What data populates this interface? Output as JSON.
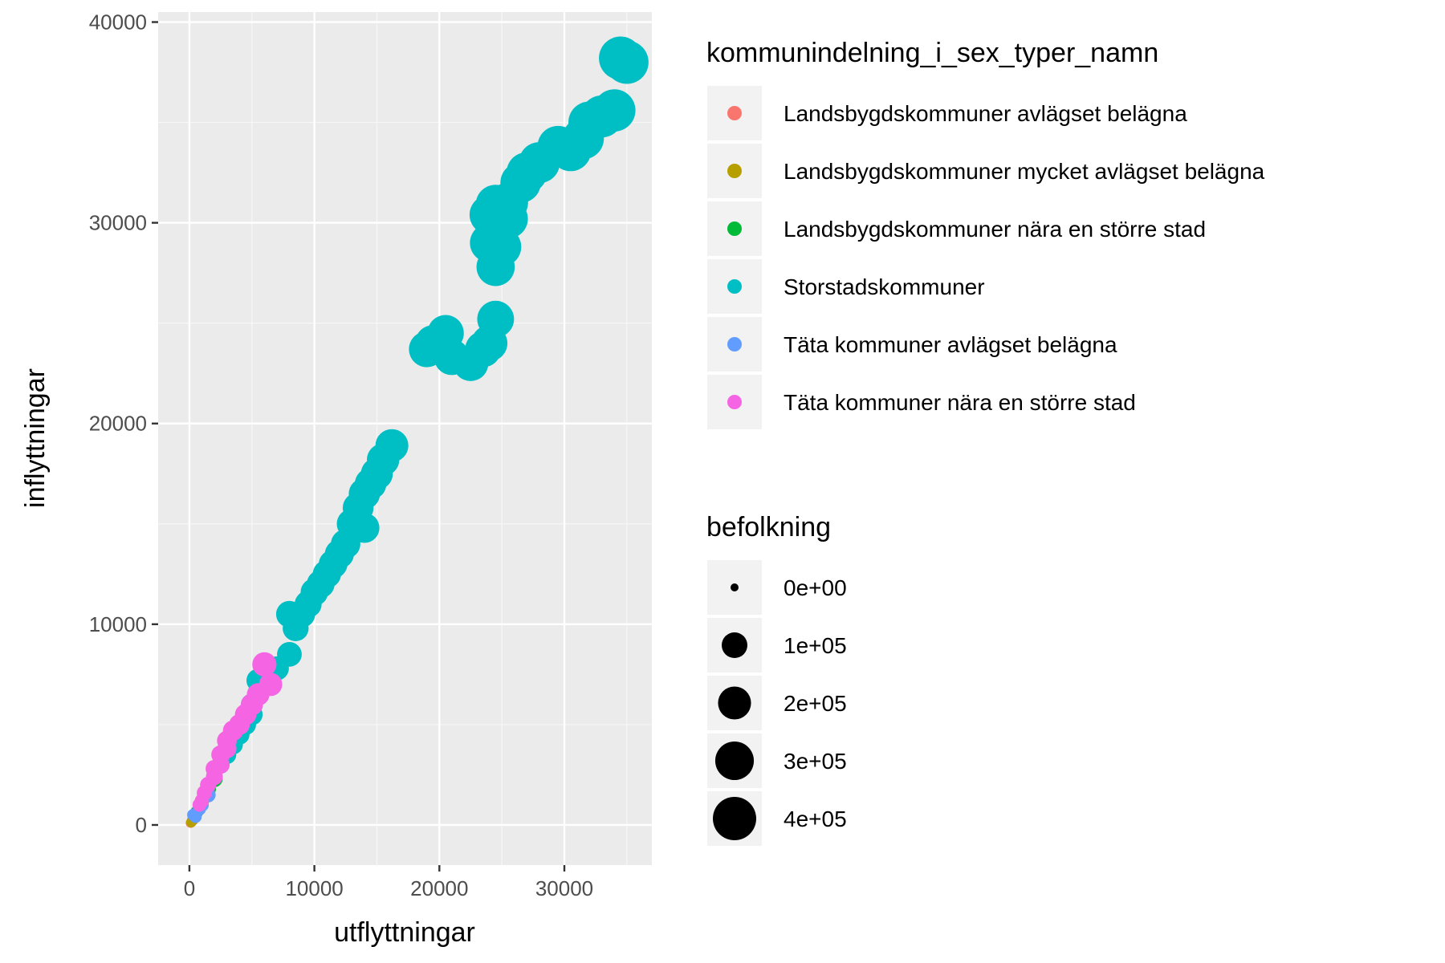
{
  "chart_data": {
    "type": "scatter",
    "xlabel": "utflyttningar",
    "ylabel": "inflyttningar",
    "xlim": [
      -2500,
      37000
    ],
    "ylim": [
      -2000,
      40500
    ],
    "x_ticks": [
      0,
      10000,
      20000,
      30000
    ],
    "x_tick_labels": [
      "0",
      "10000",
      "20000",
      "30000"
    ],
    "y_ticks": [
      0,
      10000,
      20000,
      30000,
      40000
    ],
    "y_tick_labels": [
      "0",
      "10000",
      "20000",
      "30000",
      "40000"
    ],
    "grid": true,
    "legend_position": "right",
    "color_legend": {
      "title": "kommunindelning_i_sex_typer_namn",
      "entries": [
        {
          "label": "Landsbygdskommuner avlägset belägna",
          "color": "#F8766D"
        },
        {
          "label": "Landsbygdskommuner mycket avlägset belägna",
          "color": "#B79F00"
        },
        {
          "label": "Landsbygdskommuner nära en större stad",
          "color": "#00BA38"
        },
        {
          "label": "Storstadskommuner",
          "color": "#00BFC4"
        },
        {
          "label": "Täta kommuner avlägset belägna",
          "color": "#619CFF"
        },
        {
          "label": "Täta kommuner nära en större stad",
          "color": "#F564E3"
        }
      ]
    },
    "size_legend": {
      "title": "befolkning",
      "entries": [
        {
          "label": "0e+00",
          "value": 0
        },
        {
          "label": "1e+05",
          "value": 100000
        },
        {
          "label": "2e+05",
          "value": 200000
        },
        {
          "label": "3e+05",
          "value": 300000
        },
        {
          "label": "4e+05",
          "value": 400000
        }
      ]
    },
    "series": [
      {
        "name": "Landsbygdskommuner avlägset belägna",
        "points": [
          [
            100,
            100
          ],
          [
            200,
            180
          ],
          [
            300,
            280
          ],
          [
            400,
            350
          ]
        ]
      },
      {
        "name": "Landsbygdskommuner mycket avlägset belägna",
        "points": [
          [
            150,
            130
          ],
          [
            250,
            220
          ]
        ]
      },
      {
        "name": "Landsbygdskommuner nära en större stad",
        "points": [
          [
            600,
            650
          ],
          [
            900,
            1000
          ],
          [
            1200,
            1400
          ],
          [
            1500,
            1800
          ],
          [
            2000,
            2300
          ]
        ]
      },
      {
        "name": "Storstadskommuner",
        "points": [
          [
            35000,
            38000
          ],
          [
            34500,
            38200
          ],
          [
            34000,
            35600
          ],
          [
            33000,
            35300
          ],
          [
            32000,
            35000
          ],
          [
            31500,
            34200
          ],
          [
            30500,
            33600
          ],
          [
            29500,
            33800
          ],
          [
            28000,
            33000
          ],
          [
            27000,
            32500
          ],
          [
            26500,
            32000
          ],
          [
            25500,
            31000
          ],
          [
            24500,
            30900
          ],
          [
            24000,
            30400
          ],
          [
            25500,
            30200
          ],
          [
            24000,
            29000
          ],
          [
            25000,
            28800
          ],
          [
            24500,
            27800
          ],
          [
            24500,
            25200
          ],
          [
            24000,
            24000
          ],
          [
            23500,
            23700
          ],
          [
            22500,
            23000
          ],
          [
            21000,
            23300
          ],
          [
            20500,
            24500
          ],
          [
            19500,
            24000
          ],
          [
            19000,
            23700
          ],
          [
            16200,
            18900
          ],
          [
            15500,
            18200
          ],
          [
            15000,
            17500
          ],
          [
            14500,
            17000
          ],
          [
            14000,
            16500
          ],
          [
            13500,
            15800
          ],
          [
            14000,
            14800
          ],
          [
            13000,
            15000
          ],
          [
            12500,
            14000
          ],
          [
            12000,
            13500
          ],
          [
            11500,
            13000
          ],
          [
            11000,
            12500
          ],
          [
            10500,
            12000
          ],
          [
            10000,
            11600
          ],
          [
            9500,
            11000
          ],
          [
            9000,
            10500
          ],
          [
            8000,
            10500
          ],
          [
            8500,
            9800
          ],
          [
            8000,
            8500
          ],
          [
            7000,
            7800
          ],
          [
            6000,
            7500
          ],
          [
            5500,
            7200
          ],
          [
            5000,
            6000
          ],
          [
            5000,
            5500
          ],
          [
            4500,
            5000
          ],
          [
            4000,
            4500
          ],
          [
            3500,
            4000
          ],
          [
            3000,
            3500
          ],
          [
            2500,
            3000
          ]
        ]
      },
      {
        "name": "Täta kommuner avlägset belägna",
        "points": [
          [
            500,
            400
          ],
          [
            800,
            800
          ],
          [
            1000,
            1000
          ],
          [
            1500,
            1500
          ],
          [
            300,
            500
          ]
        ]
      },
      {
        "name": "Täta kommuner nära en större stad",
        "points": [
          [
            6000,
            8000
          ],
          [
            6500,
            7000
          ],
          [
            5500,
            6500
          ],
          [
            5000,
            6000
          ],
          [
            4500,
            5500
          ],
          [
            4000,
            5000
          ],
          [
            3500,
            4700
          ],
          [
            3000,
            4200
          ],
          [
            3000,
            3800
          ],
          [
            2500,
            3500
          ],
          [
            2500,
            3000
          ],
          [
            2000,
            2800
          ],
          [
            2000,
            2400
          ],
          [
            1500,
            2000
          ],
          [
            1200,
            1600
          ],
          [
            1000,
            1200
          ],
          [
            800,
            1000
          ]
        ]
      }
    ]
  }
}
